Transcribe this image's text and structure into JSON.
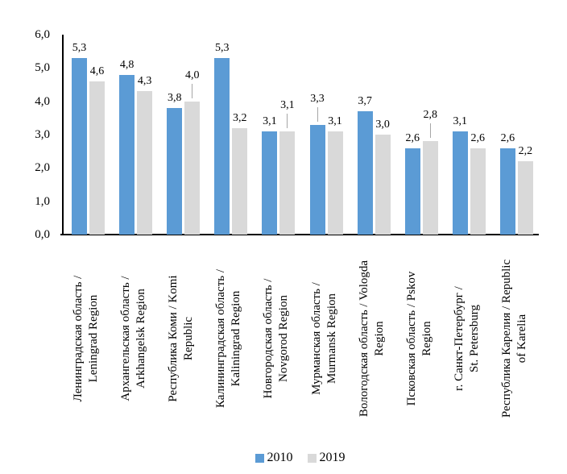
{
  "chart_data": {
    "type": "bar",
    "title": "",
    "categories": [
      "Ленинградская область / Leningrad Region",
      "Архангельская область / Arkhangelsk Region",
      "Республика Коми / Komi Republic",
      "Калининградская область / Kaliningrad Region",
      "Новгородская область / Novgorod Region",
      "Мурманская область / Murmansk Region",
      "Вологодская область / Vologda Region",
      "Псковская область / Pskov Region",
      "г. Санкт-Петербург / St. Petersburg",
      "Республика Карелия / Republic of Karelia"
    ],
    "category_lines": [
      [
        "Ленинградская область /",
        "Leningrad Region"
      ],
      [
        "Архангельская область /",
        "Arkhangelsk Region"
      ],
      [
        "Республика Коми / Komi",
        "Republic"
      ],
      [
        "Калининградская область /",
        "Kaliningrad Region"
      ],
      [
        "Новгородская область /",
        "Novgorod Region"
      ],
      [
        "Мурманская область /",
        "Murmansk Region"
      ],
      [
        "Вологодская область / Vologda",
        "Region"
      ],
      [
        "Псковская область / Pskov",
        "Region"
      ],
      [
        "г. Санкт-Петербург /",
        "St. Petersburg"
      ],
      [
        "Республика Карелия / Republic",
        "of Karelia"
      ]
    ],
    "series": [
      {
        "name": "2010",
        "color": "#5b9bd5",
        "values": [
          5.3,
          4.8,
          3.8,
          5.3,
          3.1,
          3.3,
          3.7,
          2.6,
          3.1,
          2.6
        ],
        "raised_label_indices": [
          5
        ]
      },
      {
        "name": "2019",
        "color": "#d9d9d9",
        "values": [
          4.6,
          4.3,
          4.0,
          3.2,
          3.1,
          3.1,
          3.0,
          2.8,
          2.6,
          2.2
        ],
        "raised_label_indices": [
          2,
          4,
          7
        ]
      }
    ],
    "ylim": [
      0,
      6
    ],
    "yticks": [
      0,
      1,
      2,
      3,
      4,
      5,
      6
    ],
    "ytick_labels": [
      "0,0",
      "1,0",
      "2,0",
      "3,0",
      "4,0",
      "5,0",
      "6,0"
    ],
    "decimal_separator": ",",
    "grid": false,
    "legend_position": "bottom",
    "data_labels": "outside-end",
    "colors": {
      "axis": "#000000",
      "text": "#000000",
      "leader_line": "#a6a6a6",
      "background": "#ffffff"
    }
  }
}
